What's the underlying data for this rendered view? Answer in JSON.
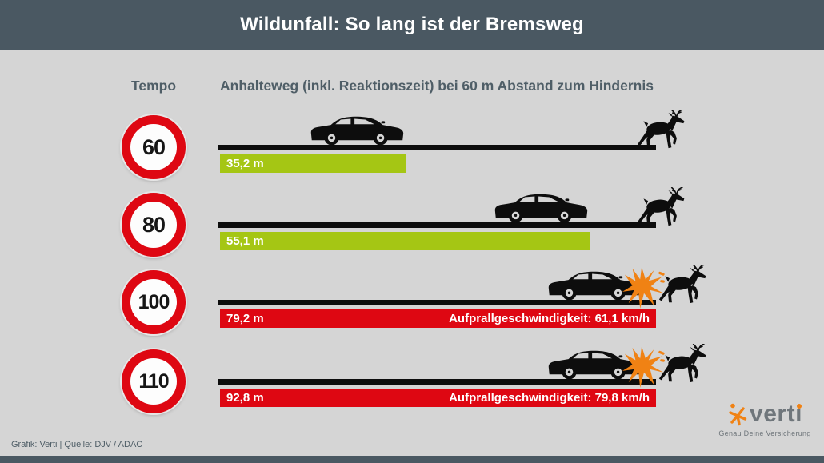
{
  "title": "Wildunfall: So lang ist der Bremsweg",
  "columns": {
    "tempo": "Tempo",
    "anhalteweg": "Anhalteweg (inkl. Reaktionszeit) bei 60 m Abstand zum Hindernis"
  },
  "rows": [
    {
      "speed": "60",
      "distance": "35,2 m",
      "impact": "",
      "outcome": "stopped",
      "bar_pct": 42.8,
      "car_pct": 43,
      "deer_pct": 95.4
    },
    {
      "speed": "80",
      "distance": "55,1 m",
      "impact": "",
      "outcome": "stopped",
      "bar_pct": 85,
      "car_pct": 85,
      "deer_pct": 95.4
    },
    {
      "speed": "100",
      "distance": "79,2 m",
      "impact": "Aufprallgeschwindigkeit: 61,1 km/h",
      "outcome": "collision",
      "bar_pct": 100,
      "car_pct": 97.3,
      "deer_pct": 100.4
    },
    {
      "speed": "110",
      "distance": "92,8 m",
      "impact": "Aufprallgeschwindigkeit: 79,8 km/h",
      "outcome": "collision",
      "bar_pct": 100,
      "car_pct": 97.3,
      "deer_pct": 100.4
    }
  ],
  "chart_data": {
    "type": "bar",
    "title": "Wildunfall: So lang ist der Bremsweg",
    "categories": [
      "60",
      "80",
      "100",
      "110"
    ],
    "series": [
      {
        "name": "Anhalteweg inkl. Reaktionszeit (m)",
        "values": [
          35.2,
          55.1,
          79.2,
          92.8
        ]
      },
      {
        "name": "Aufprallgeschwindigkeit (km/h)",
        "values": [
          null,
          null,
          61.1,
          79.8
        ]
      }
    ],
    "xlabel": "Tempo (km/h)",
    "ylabel": "Anhalteweg (inkl. Reaktionszeit) bei 60 m Abstand zum Hindernis",
    "obstacle_distance_m": 60,
    "bar_colors_by_outcome": {
      "stopped": "#a5c614",
      "collision": "#de0712"
    },
    "orientation": "horizontal",
    "grid": false,
    "legend": "none"
  },
  "footer": {
    "credit": "Grafik: Verti | Quelle: DJV / ADAC"
  },
  "logo": {
    "brand_prefix": "vert",
    "brand_i": "ı",
    "tagline": "Genau Deine Versicherung"
  },
  "colors": {
    "header": "#4a5862",
    "bg": "#d5d5d5",
    "green": "#a5c614",
    "red": "#de0712",
    "orange": "#f08214",
    "slate": "#4f5e67",
    "logo-gray": "#6f767b",
    "black": "#0d0d0d"
  }
}
